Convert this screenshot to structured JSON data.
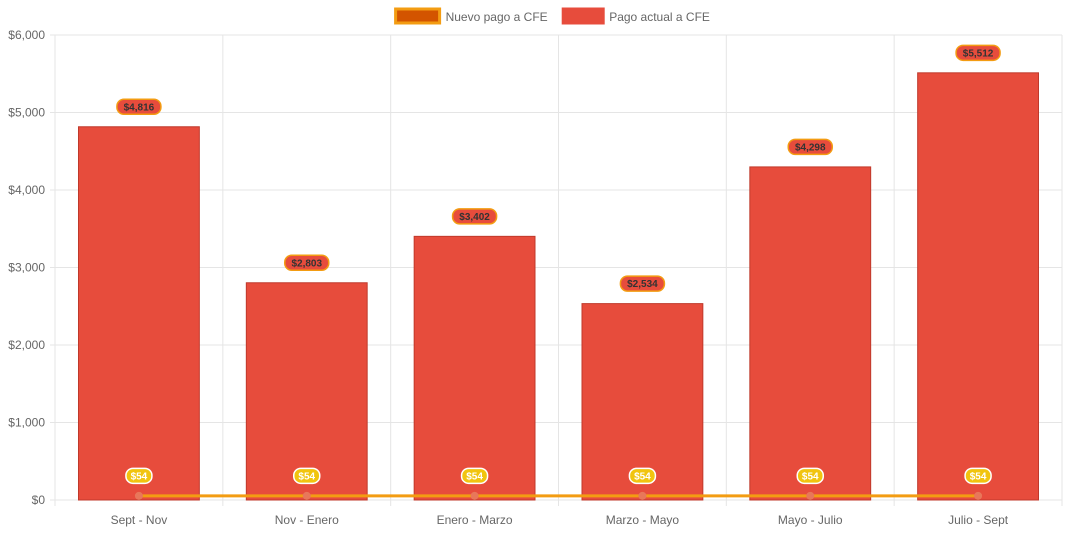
{
  "chart_data": {
    "type": "bar",
    "categories": [
      "Sept - Nov",
      "Nov - Enero",
      "Enero - Marzo",
      "Marzo - Mayo",
      "Mayo - Julio",
      "Julio - Sept"
    ],
    "series": [
      {
        "name": "Nuevo pago a CFE",
        "type": "line",
        "values": [
          54,
          54,
          54,
          54,
          54,
          54
        ],
        "labels": [
          "$54",
          "$54",
          "$54",
          "$54",
          "$54",
          "$54"
        ],
        "color": "#f39c12",
        "fill": "#d35400",
        "point_color": "#e8775a",
        "label_bg": "#f1c40f"
      },
      {
        "name": "Pago actual a CFE",
        "type": "bar",
        "values": [
          4816,
          2803,
          3402,
          2534,
          4298,
          5512
        ],
        "labels": [
          "$4,816",
          "$2,803",
          "$3,402",
          "$2,534",
          "$4,298",
          "$5,512"
        ],
        "color": "#e74c3c",
        "label_bg": "#e74c3c",
        "label_border": "#f39c12",
        "label_text": "#333333"
      }
    ],
    "ylim": [
      0,
      6000
    ],
    "yticks": [
      0,
      1000,
      2000,
      3000,
      4000,
      5000,
      6000
    ],
    "ytick_labels": [
      "$0",
      "$1,000",
      "$2,000",
      "$3,000",
      "$4,000",
      "$5,000",
      "$6,000"
    ],
    "grid": true,
    "legend_position": "top-center"
  }
}
